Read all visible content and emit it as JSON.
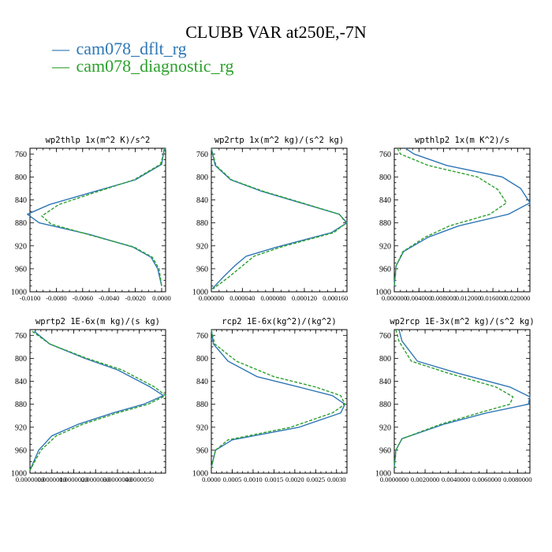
{
  "figure": {
    "title": "CLUBB VAR at250E,-7N",
    "legend": [
      {
        "marker": "—",
        "label": "cam078_dflt_rg",
        "color": "#2f77b5",
        "dash": false
      },
      {
        "marker": "—",
        "label": "cam078_diagnostic_rg",
        "color": "#2ca02c",
        "dash": true
      }
    ]
  },
  "chart_data": [
    {
      "type": "line",
      "title": "wp2thlp  1x(m^2 K)/s^2",
      "xlabel": "",
      "ylabel": "",
      "xlim": [
        -0.01,
        0.0003
      ],
      "ylim": [
        1000,
        750
      ],
      "xticks": [
        -0.01,
        -0.008,
        -0.006,
        -0.004,
        -0.002,
        0.0
      ],
      "xtick_labels": [
        "-0.0100",
        "-0.0080",
        "-0.0060",
        "-0.0040",
        "-0.0020",
        "0.0000"
      ],
      "yticks": [
        760,
        800,
        840,
        880,
        920,
        960,
        1000
      ],
      "series": [
        {
          "name": "cam078_dflt_rg",
          "color": "#2f77b5",
          "dash": false,
          "x": [
            0.0002,
            0.0,
            -0.002,
            -0.0055,
            -0.0085,
            -0.0102,
            -0.0093,
            -0.0055,
            -0.0022,
            -0.0008,
            -0.0003,
            0.0
          ],
          "y": [
            750,
            778,
            805,
            828,
            848,
            865,
            880,
            900,
            922,
            940,
            960,
            990
          ]
        },
        {
          "name": "cam078_diagnostic_rg",
          "color": "#2ca02c",
          "dash": true,
          "x": [
            0.0003,
            -0.0001,
            -0.0021,
            -0.0052,
            -0.0078,
            -0.0091,
            -0.0084,
            -0.0053,
            -0.0021,
            -0.0007,
            -0.0002,
            0.0
          ],
          "y": [
            750,
            778,
            805,
            828,
            848,
            868,
            882,
            902,
            922,
            940,
            960,
            990
          ]
        }
      ]
    },
    {
      "type": "line",
      "title": "wp2rtp  1x(m^2 kg)/(s^2 kg)",
      "xlabel": "",
      "ylabel": "",
      "xlim": [
        0.0,
        0.000175
      ],
      "ylim": [
        1000,
        750
      ],
      "xticks": [
        0.0,
        4e-05,
        8e-05,
        0.00012,
        0.00016
      ],
      "xtick_labels": [
        "0.000000",
        "0.000040",
        "0.000080",
        "0.000120",
        "0.000160"
      ],
      "yticks": [
        760,
        800,
        840,
        880,
        920,
        960,
        1000
      ],
      "series": [
        {
          "name": "cam078_dflt_rg",
          "color": "#2f77b5",
          "dash": false,
          "x": [
            0.0,
            5e-06,
            2.5e-05,
            6.5e-05,
            0.000115,
            0.000165,
            0.000175,
            0.000155,
            8.5e-05,
            4.5e-05,
            3e-05,
            1.5e-05,
            1e-06
          ],
          "y": [
            750,
            780,
            805,
            825,
            845,
            865,
            880,
            897,
            922,
            938,
            955,
            975,
            995
          ]
        },
        {
          "name": "cam078_diagnostic_rg",
          "color": "#2ca02c",
          "dash": true,
          "x": [
            0.0,
            6e-06,
            2.6e-05,
            6.7e-05,
            0.000117,
            0.000165,
            0.000174,
            0.000158,
            9e-05,
            5.5e-05,
            4e-05,
            2.2e-05,
            2e-06
          ],
          "y": [
            750,
            780,
            805,
            825,
            845,
            865,
            880,
            897,
            922,
            938,
            955,
            975,
            995
          ]
        }
      ]
    },
    {
      "type": "line",
      "title": "wpthlp2  1x(m K^2)/s",
      "xlabel": "",
      "ylabel": "",
      "xlim": [
        0.0,
        0.022
      ],
      "ylim": [
        1000,
        750
      ],
      "xticks": [
        0.0,
        0.004,
        0.008,
        0.012,
        0.016,
        0.02
      ],
      "xtick_labels": [
        "0.000000",
        "0.004000",
        "0.008000",
        "0.012000",
        "0.016000",
        "0.020000"
      ],
      "yticks": [
        760,
        800,
        840,
        880,
        920,
        960,
        1000
      ],
      "series": [
        {
          "name": "cam078_dflt_rg",
          "color": "#2f77b5",
          "dash": false,
          "x": [
            0.0018,
            0.0032,
            0.0085,
            0.0175,
            0.0205,
            0.022,
            0.0185,
            0.0105,
            0.0055,
            0.0015,
            0.0003,
            0.0
          ],
          "y": [
            750,
            760,
            780,
            800,
            820,
            845,
            865,
            885,
            905,
            930,
            955,
            990
          ]
        },
        {
          "name": "cam078_diagnostic_rg",
          "color": "#2ca02c",
          "dash": true,
          "x": [
            0.0005,
            0.001,
            0.0055,
            0.0135,
            0.0168,
            0.0182,
            0.0155,
            0.009,
            0.005,
            0.0014,
            0.0003,
            0.0
          ],
          "y": [
            750,
            760,
            780,
            800,
            822,
            845,
            865,
            885,
            905,
            930,
            955,
            990
          ]
        }
      ]
    },
    {
      "type": "line",
      "title": "wprtp2  1E-6x(m kg)/(s kg)",
      "xlabel": "",
      "ylabel": "",
      "xlim": [
        0.0,
        6.2e-06
      ],
      "ylim": [
        1000,
        750
      ],
      "xticks": [
        0.0,
        1e-06,
        2e-06,
        3e-06,
        4e-06,
        5e-06
      ],
      "xtick_labels": [
        "0.0000000",
        "0.0000010",
        "0.0000020",
        "0.0000030",
        "0.0000040",
        "0.0000050"
      ],
      "yticks": [
        760,
        800,
        840,
        880,
        920,
        960,
        1000
      ],
      "series": [
        {
          "name": "cam078_dflt_rg",
          "color": "#2f77b5",
          "dash": false,
          "x": [
            2e-07,
            9e-07,
            2.5e-06,
            4e-06,
            5.5e-06,
            6.1e-06,
            5.2e-06,
            3.8e-06,
            2.2e-06,
            1e-06,
            4e-07,
            0.0
          ],
          "y": [
            753,
            775,
            800,
            820,
            850,
            865,
            880,
            895,
            915,
            935,
            960,
            995
          ]
        },
        {
          "name": "cam078_diagnostic_rg",
          "color": "#2ca02c",
          "dash": true,
          "x": [
            1e-07,
            9e-07,
            2.6e-06,
            4.2e-06,
            5.7e-06,
            6.2e-06,
            5.4e-06,
            4e-06,
            2.4e-06,
            1.2e-06,
            5e-07,
            0.0
          ],
          "y": [
            753,
            775,
            800,
            820,
            850,
            865,
            880,
            895,
            915,
            935,
            960,
            995
          ]
        }
      ]
    },
    {
      "type": "line",
      "title": "rcp2  1E-6x(kg^2)/(kg^2)",
      "xlabel": "",
      "ylabel": "",
      "xlim": [
        0.0,
        0.00325
      ],
      "ylim": [
        1000,
        750
      ],
      "xticks": [
        0.0,
        0.0005,
        0.001,
        0.0015,
        0.002,
        0.0025,
        0.003
      ],
      "xtick_labels": [
        "0.0000",
        "0.0005",
        "0.0010",
        "0.0015",
        "0.0020",
        "0.0025",
        "0.0030"
      ],
      "yticks": [
        760,
        800,
        840,
        880,
        920,
        960,
        1000
      ],
      "series": [
        {
          "name": "cam078_dflt_rg",
          "color": "#2f77b5",
          "dash": false,
          "x": [
            0.0,
            5e-05,
            0.0004,
            0.0011,
            0.0021,
            0.0029,
            0.0032,
            0.0031,
            0.0021,
            0.0005,
            0.0001,
            0.0
          ],
          "y": [
            750,
            775,
            805,
            832,
            850,
            865,
            880,
            895,
            920,
            942,
            960,
            990
          ]
        },
        {
          "name": "cam078_diagnostic_rg",
          "color": "#2ca02c",
          "dash": true,
          "x": [
            0.0,
            8e-05,
            0.0006,
            0.0015,
            0.0025,
            0.0031,
            0.0032,
            0.0029,
            0.0019,
            0.0004,
            0.0001,
            0.0
          ],
          "y": [
            750,
            775,
            805,
            832,
            850,
            865,
            880,
            895,
            920,
            942,
            960,
            990
          ]
        }
      ]
    },
    {
      "type": "line",
      "title": "wp2rcp  1E-3x(m^2 kg)/(s^2 kg)",
      "xlabel": "",
      "ylabel": "",
      "xlim": [
        0.0,
        0.0088
      ],
      "ylim": [
        1000,
        750
      ],
      "xticks": [
        0.0,
        0.002,
        0.004,
        0.006,
        0.008
      ],
      "xtick_labels": [
        "0.0000000",
        "0.0020000",
        "0.0040000",
        "0.0060000",
        "0.0080000"
      ],
      "yticks": [
        760,
        800,
        840,
        880,
        920,
        960,
        1000
      ],
      "series": [
        {
          "name": "cam078_dflt_rg",
          "color": "#2f77b5",
          "dash": false,
          "x": [
            0.0003,
            0.0005,
            0.0015,
            0.004,
            0.0075,
            0.0088,
            0.0087,
            0.006,
            0.0032,
            0.0005,
            0.0001,
            0.0
          ],
          "y": [
            750,
            770,
            805,
            825,
            850,
            867,
            880,
            895,
            915,
            940,
            960,
            990
          ]
        },
        {
          "name": "cam078_diagnostic_rg",
          "color": "#2ca02c",
          "dash": true,
          "x": [
            0.0001,
            0.0003,
            0.0011,
            0.0034,
            0.0066,
            0.0077,
            0.0075,
            0.0055,
            0.003,
            0.0005,
            0.0001,
            0.0
          ],
          "y": [
            750,
            770,
            805,
            825,
            850,
            867,
            880,
            895,
            915,
            940,
            960,
            990
          ]
        }
      ]
    }
  ]
}
